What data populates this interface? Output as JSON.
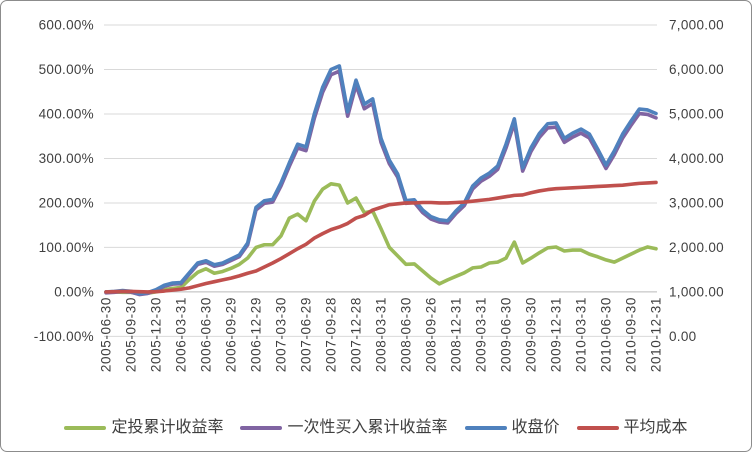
{
  "chart_data": {
    "type": "line",
    "title": "",
    "grid": true,
    "legend_position": "bottom",
    "plot_bg": "#ffffff",
    "gridline_color": "#d9d9d9",
    "axis_line_color": "#bfbfbf",
    "axis_text_color": "#404040",
    "left_axis": {
      "unit": "%",
      "min": -100,
      "max": 600,
      "step": 100,
      "tick_labels": [
        "600.00%",
        "500.00%",
        "400.00%",
        "300.00%",
        "200.00%",
        "100.00%",
        "0.00%",
        "-100.00%"
      ]
    },
    "right_axis": {
      "min": 0,
      "max": 7000,
      "step": 1000,
      "tick_labels": [
        "7,000.00",
        "6,000.00",
        "5,000.00",
        "4,000.00",
        "3,000.00",
        "2,000.00",
        "1,000.00",
        "0.00"
      ]
    },
    "x_tick_labels": [
      "2005-06-30",
      "2005-09-30",
      "2005-12-30",
      "2006-03-31",
      "2006-06-30",
      "2006-09-29",
      "2006-12-29",
      "2007-03-30",
      "2007-06-29",
      "2007-09-28",
      "2007-12-28",
      "2008-03-31",
      "2008-06-30",
      "2008-09-26",
      "2008-12-31",
      "2009-03-31",
      "2009-06-30",
      "2009-09-30",
      "2009-12-31",
      "2010-03-31",
      "2010-06-30",
      "2010-09-30",
      "2010-12-31"
    ],
    "x_points_per_tick": 3,
    "x_point_count": 67,
    "series": [
      {
        "name": "定投累计收益率",
        "slug": "dca-cumulative-return",
        "axis": "left",
        "color": "#9bbb59",
        "values": [
          0,
          0,
          -1,
          -1,
          -4,
          -3,
          0,
          5,
          8,
          10,
          28,
          44,
          52,
          42,
          46,
          53,
          62,
          76,
          100,
          106,
          106,
          126,
          166,
          175,
          160,
          204,
          231,
          243,
          240,
          200,
          211,
          178,
          182,
          142,
          100,
          81,
          62,
          63,
          47,
          31,
          18,
          27,
          35,
          43,
          54,
          56,
          65,
          67,
          76,
          112,
          65,
          76,
          88,
          99,
          101,
          92,
          94,
          94,
          85,
          79,
          72,
          67,
          76,
          85,
          94,
          101,
          97
        ]
      },
      {
        "name": "一次性买入累计收益率",
        "slug": "lumpsum-cumulative-return",
        "axis": "left",
        "color": "#8064a2",
        "values": [
          -2.0,
          -1.0,
          1.0,
          -0.5,
          -5.9,
          -3.4,
          2.9,
          12.7,
          17.6,
          18.6,
          40.2,
          61.8,
          66.7,
          57.8,
          61.8,
          70.6,
          79.4,
          105.9,
          184.3,
          199.0,
          202.0,
          238.2,
          282.4,
          323.5,
          317.6,
          390.2,
          449.0,
          488.2,
          496.1,
          395.1,
          464.7,
          411.8,
          423.5,
          336.3,
          288.2,
          257.8,
          199.0,
          201.0,
          178.4,
          163.7,
          156.9,
          154.9,
          176.5,
          194.1,
          231.4,
          249.0,
          259.8,
          275.5,
          323.5,
          379.4,
          271.6,
          315.7,
          347.1,
          368.6,
          370.6,
          336.3,
          348.0,
          356.9,
          346.1,
          312.7,
          277.5,
          308.8,
          346.1,
          374.5,
          401.0,
          399.0,
          391.2
        ]
      },
      {
        "name": "收盘价",
        "slug": "closing-price",
        "axis": "right",
        "color": "#4f81bd",
        "values": [
          1000,
          1010,
          1030,
          1015,
          960,
          985,
          1050,
          1150,
          1200,
          1210,
          1430,
          1650,
          1700,
          1610,
          1650,
          1740,
          1830,
          2100,
          2900,
          3050,
          3080,
          3450,
          3900,
          4320,
          4260,
          5000,
          5600,
          6000,
          6080,
          5050,
          5760,
          5220,
          5340,
          4450,
          3960,
          3650,
          3050,
          3070,
          2840,
          2690,
          2620,
          2600,
          2820,
          3000,
          3380,
          3560,
          3670,
          3830,
          4320,
          4890,
          3790,
          4240,
          4560,
          4780,
          4800,
          4450,
          4570,
          4660,
          4550,
          4210,
          3850,
          4170,
          4550,
          4840,
          5110,
          5090,
          5010
        ]
      },
      {
        "name": "平均成本",
        "slug": "average-cost",
        "axis": "right",
        "color": "#c0504d",
        "values": [
          1000,
          1005,
          1010,
          1010,
          1005,
          1000,
          1005,
          1020,
          1040,
          1060,
          1090,
          1140,
          1190,
          1230,
          1270,
          1310,
          1360,
          1420,
          1470,
          1560,
          1650,
          1750,
          1860,
          1970,
          2070,
          2210,
          2310,
          2400,
          2460,
          2540,
          2660,
          2720,
          2840,
          2900,
          2960,
          2980,
          3000,
          3000,
          3010,
          3010,
          3000,
          3000,
          3010,
          3020,
          3040,
          3060,
          3080,
          3110,
          3140,
          3170,
          3180,
          3230,
          3270,
          3300,
          3320,
          3330,
          3340,
          3350,
          3360,
          3370,
          3380,
          3390,
          3400,
          3420,
          3440,
          3450,
          3460
        ]
      }
    ]
  },
  "legend": {
    "items": [
      {
        "label": "定投累计收益率"
      },
      {
        "label": "一次性买入累计收益率"
      },
      {
        "label": "收盘价"
      },
      {
        "label": "平均成本"
      }
    ]
  }
}
